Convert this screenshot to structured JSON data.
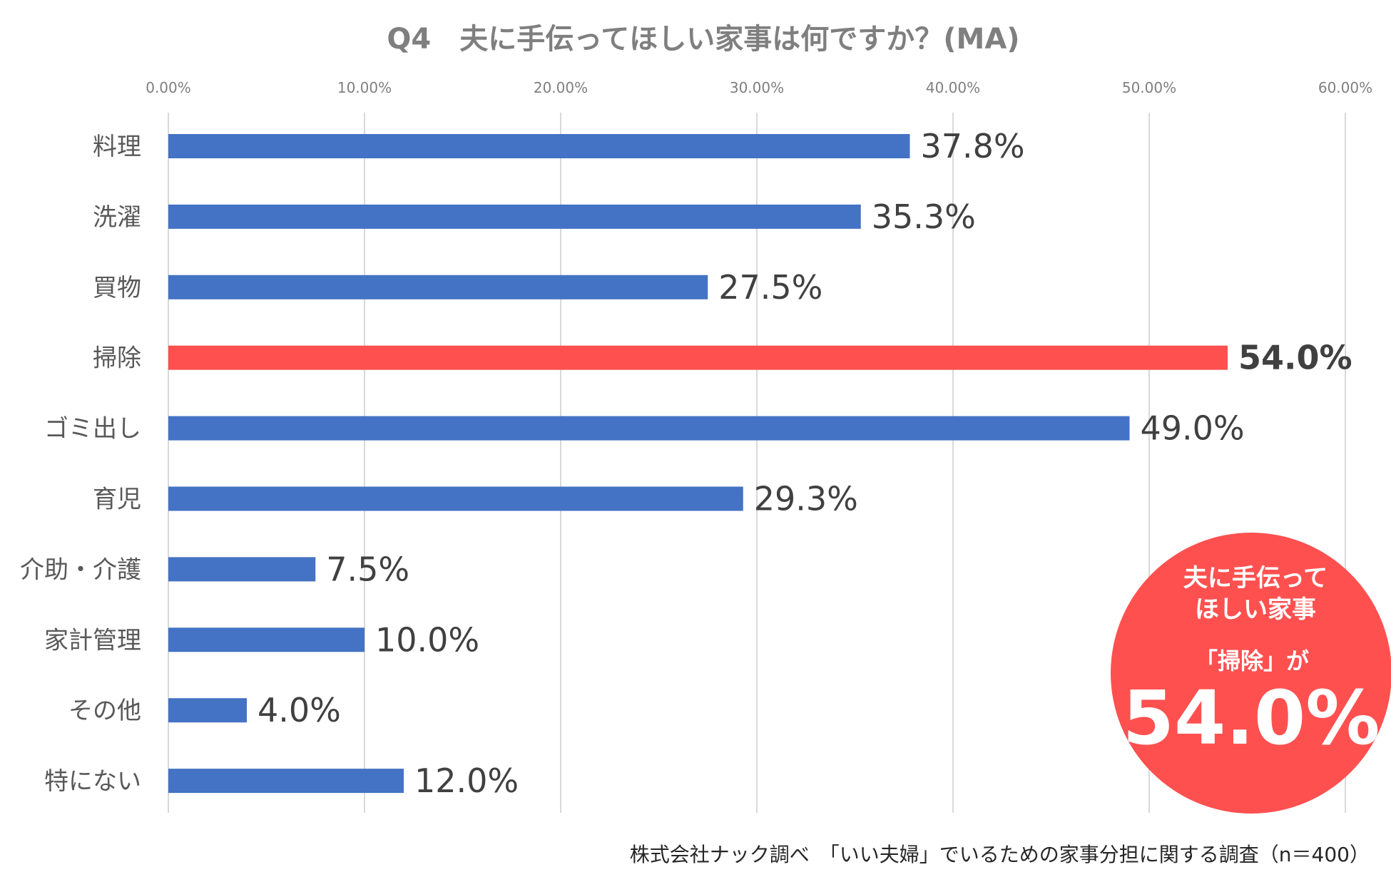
{
  "chart_data": {
    "type": "bar",
    "orientation": "horizontal",
    "title": "Q4　夫に手伝ってほしい家事は何ですか？(MA)",
    "categories": [
      "料理",
      "洗濯",
      "買物",
      "掃除",
      "ゴミ出し",
      "育児",
      "介助・介護",
      "家計管理",
      "その他",
      "特にない"
    ],
    "values": [
      37.8,
      35.3,
      27.5,
      54.0,
      49.0,
      29.3,
      7.5,
      10.0,
      4.0,
      12.0
    ],
    "value_labels": [
      "37.8%",
      "35.3%",
      "27.5%",
      "54.0%",
      "49.0%",
      "29.3%",
      "7.5%",
      "10.0%",
      "4.0%",
      "12.0%"
    ],
    "highlight_index": 3,
    "xlim": [
      0,
      60
    ],
    "xticks": [
      "0.00%",
      "10.00%",
      "20.00%",
      "30.00%",
      "40.00%",
      "50.00%",
      "60.00%"
    ],
    "grid": true,
    "legend": "none",
    "colors": {
      "bar": "#4472c4",
      "highlight": "#ff5050",
      "callout": "#ff5050"
    }
  },
  "callout": {
    "line1": "夫に手伝って",
    "line2": "ほしい家事",
    "line3": "「掃除」が",
    "big": "54.0%"
  },
  "source": "株式会社ナック調べ　「いい夫婦」でいるための家事分担に関する調査（n＝400）"
}
